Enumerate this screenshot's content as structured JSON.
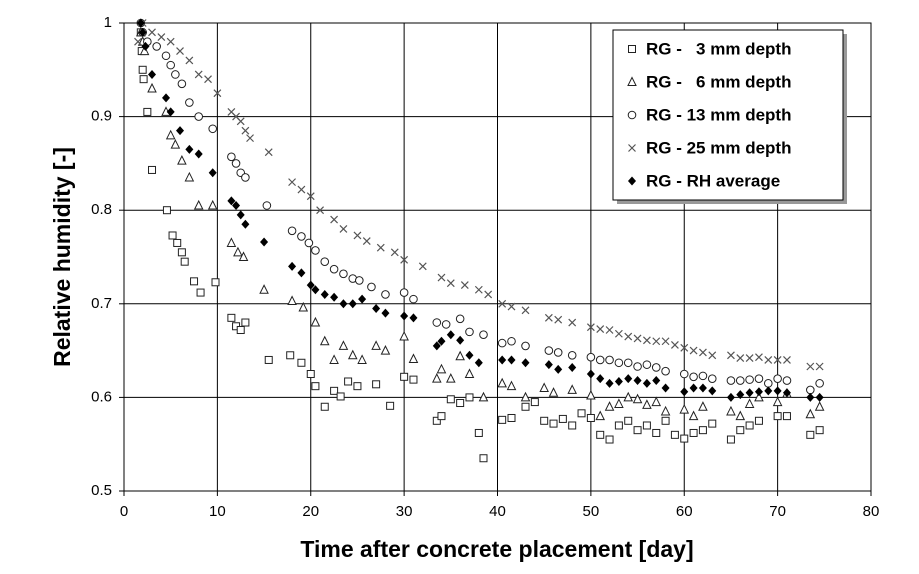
{
  "chart_data": {
    "type": "scatter",
    "x_label": "Time after concrete placement [day]",
    "y_label": "Relative humidity [-]",
    "xlim": [
      0,
      80
    ],
    "xticks": [
      0,
      10,
      20,
      30,
      40,
      50,
      60,
      70,
      80
    ],
    "ylim": [
      0.5,
      1
    ],
    "yticks": [
      0.5,
      0.6,
      0.7,
      0.8,
      0.9,
      1
    ],
    "grid": true,
    "legend": "top-right",
    "series": [
      {
        "name": "RG -   3 mm depth",
        "marker": "square",
        "color": "#222222",
        "x": [
          1.8,
          1.9,
          2,
          2.1,
          2.5,
          3,
          4.6,
          5.2,
          5.7,
          6.2,
          6.5,
          7.5,
          8.2,
          9.8,
          11.5,
          12,
          12.5,
          13,
          15.5,
          17.8,
          19,
          20,
          20.5,
          21.5,
          22.5,
          23.2,
          24,
          25,
          27,
          28.5,
          30,
          31,
          33.5,
          34,
          35,
          36,
          37,
          38,
          38.5,
          40.5,
          41.5,
          43,
          44,
          45,
          46,
          47,
          48,
          49,
          50,
          51,
          52,
          53,
          54,
          55,
          56,
          57,
          58,
          59,
          60,
          61,
          62,
          63,
          65,
          66,
          67,
          68,
          70,
          71,
          73.5,
          74.5
        ],
        "values": [
          0.99,
          0.97,
          0.95,
          0.94,
          0.905,
          0.843,
          0.8,
          0.773,
          0.765,
          0.755,
          0.745,
          0.724,
          0.712,
          0.723,
          0.685,
          0.676,
          0.672,
          0.68,
          0.64,
          0.645,
          0.637,
          0.625,
          0.612,
          0.59,
          0.607,
          0.601,
          0.617,
          0.612,
          0.614,
          0.591,
          0.622,
          0.619,
          0.575,
          0.58,
          0.598,
          0.594,
          0.6,
          0.562,
          0.535,
          0.576,
          0.578,
          0.59,
          0.595,
          0.575,
          0.572,
          0.577,
          0.57,
          0.583,
          0.578,
          0.56,
          0.555,
          0.57,
          0.575,
          0.565,
          0.57,
          0.562,
          0.575,
          0.56,
          0.556,
          0.562,
          0.565,
          0.572,
          0.555,
          0.565,
          0.57,
          0.575,
          0.58,
          0.58,
          0.56,
          0.565
        ]
      },
      {
        "name": "RG -   6 mm depth",
        "marker": "triangle",
        "color": "#222222",
        "x": [
          1.8,
          2,
          2.2,
          3,
          4.5,
          5,
          5.5,
          6.2,
          7,
          8,
          9.5,
          11.5,
          12.2,
          12.8,
          15,
          18,
          19.2,
          20.5,
          21.5,
          22.5,
          23.5,
          24.5,
          25.5,
          27,
          28,
          30,
          31,
          33.5,
          34,
          35,
          36,
          37,
          38.5,
          40.5,
          41.5,
          43,
          45,
          46,
          48,
          50,
          51,
          52,
          53,
          54,
          55,
          56,
          57,
          58,
          60,
          61,
          62,
          65,
          66,
          67,
          68,
          70,
          71,
          73.5,
          74.5
        ],
        "values": [
          0.99,
          0.98,
          0.97,
          0.93,
          0.905,
          0.88,
          0.87,
          0.853,
          0.835,
          0.805,
          0.805,
          0.765,
          0.755,
          0.75,
          0.715,
          0.703,
          0.696,
          0.68,
          0.66,
          0.64,
          0.655,
          0.645,
          0.64,
          0.655,
          0.65,
          0.665,
          0.641,
          0.62,
          0.63,
          0.62,
          0.644,
          0.625,
          0.6,
          0.615,
          0.612,
          0.6,
          0.61,
          0.605,
          0.608,
          0.602,
          0.58,
          0.59,
          0.593,
          0.6,
          0.598,
          0.592,
          0.595,
          0.585,
          0.587,
          0.58,
          0.59,
          0.585,
          0.58,
          0.593,
          0.6,
          0.595,
          0.604,
          0.582,
          0.59
        ]
      },
      {
        "name": "RG - 13 mm depth",
        "marker": "circle",
        "color": "#222222",
        "x": [
          1.8,
          2,
          2.5,
          3.5,
          4.5,
          5,
          5.5,
          6.2,
          7,
          8,
          9.5,
          11.5,
          12,
          12.5,
          13,
          15.3,
          18,
          19,
          19.8,
          20.5,
          21.5,
          22.5,
          23.5,
          24.5,
          25.2,
          26.5,
          28,
          30,
          31,
          33.5,
          34.5,
          36,
          37,
          38.5,
          40.5,
          41.5,
          43,
          45.5,
          46.5,
          48,
          50,
          51,
          52,
          53,
          54,
          55,
          56,
          57,
          58,
          60,
          61,
          62,
          63,
          65,
          66,
          67,
          68,
          69,
          70,
          71,
          73.5,
          74.5
        ],
        "values": [
          1.0,
          0.99,
          0.98,
          0.975,
          0.965,
          0.955,
          0.945,
          0.935,
          0.915,
          0.9,
          0.887,
          0.857,
          0.85,
          0.84,
          0.835,
          0.805,
          0.778,
          0.772,
          0.765,
          0.757,
          0.745,
          0.737,
          0.732,
          0.727,
          0.725,
          0.718,
          0.71,
          0.712,
          0.705,
          0.68,
          0.678,
          0.684,
          0.67,
          0.667,
          0.658,
          0.66,
          0.655,
          0.65,
          0.648,
          0.645,
          0.643,
          0.64,
          0.64,
          0.637,
          0.637,
          0.633,
          0.635,
          0.632,
          0.628,
          0.625,
          0.622,
          0.623,
          0.62,
          0.618,
          0.618,
          0.619,
          0.62,
          0.615,
          0.62,
          0.618,
          0.608,
          0.615
        ]
      },
      {
        "name": "RG - 25 mm depth",
        "marker": "cross",
        "color": "#555555",
        "x": [
          1.5,
          2,
          3,
          4,
          5,
          6,
          7,
          8,
          9,
          10,
          11.5,
          12,
          12.5,
          13,
          13.5,
          15.5,
          18,
          19,
          20,
          21,
          22.5,
          23.5,
          25,
          26,
          27.5,
          29,
          30,
          32,
          34,
          35,
          36.5,
          38,
          39,
          40.5,
          41.5,
          43,
          45.5,
          46.5,
          48,
          50,
          51,
          52,
          53,
          54,
          55,
          56,
          57,
          58,
          59,
          60,
          61,
          62,
          63,
          65,
          66,
          67,
          68,
          69,
          70,
          71,
          73.5,
          74.5
        ],
        "values": [
          0.98,
          1.0,
          0.99,
          0.985,
          0.98,
          0.97,
          0.96,
          0.945,
          0.94,
          0.925,
          0.905,
          0.9,
          0.895,
          0.885,
          0.877,
          0.862,
          0.83,
          0.822,
          0.815,
          0.8,
          0.79,
          0.78,
          0.773,
          0.767,
          0.76,
          0.755,
          0.747,
          0.74,
          0.728,
          0.722,
          0.72,
          0.715,
          0.71,
          0.7,
          0.697,
          0.693,
          0.685,
          0.683,
          0.68,
          0.675,
          0.673,
          0.672,
          0.668,
          0.665,
          0.663,
          0.661,
          0.66,
          0.66,
          0.656,
          0.653,
          0.65,
          0.648,
          0.645,
          0.645,
          0.642,
          0.642,
          0.643,
          0.64,
          0.64,
          0.64,
          0.633,
          0.633
        ]
      },
      {
        "name": "RG - RH average",
        "marker": "diamond",
        "color": "#000000",
        "x": [
          1.8,
          2,
          2.3,
          3,
          4.5,
          5,
          6,
          7,
          8,
          9.5,
          11.5,
          12,
          12.5,
          13,
          15,
          18,
          19,
          20,
          20.5,
          21.5,
          22.5,
          23.5,
          24.5,
          25.5,
          27,
          28,
          30,
          31,
          33.5,
          34,
          35,
          36,
          37,
          38,
          40.5,
          41.5,
          43,
          45.5,
          46.5,
          48,
          50,
          51,
          52,
          53,
          54,
          55,
          56,
          57,
          58,
          60,
          61,
          62,
          63,
          65,
          66,
          67,
          68,
          69,
          70,
          71,
          73.5,
          74.5
        ],
        "values": [
          1.0,
          0.99,
          0.975,
          0.945,
          0.92,
          0.905,
          0.885,
          0.865,
          0.86,
          0.84,
          0.81,
          0.805,
          0.795,
          0.785,
          0.766,
          0.74,
          0.733,
          0.72,
          0.715,
          0.71,
          0.707,
          0.7,
          0.7,
          0.705,
          0.695,
          0.69,
          0.687,
          0.685,
          0.655,
          0.66,
          0.667,
          0.661,
          0.645,
          0.637,
          0.64,
          0.64,
          0.637,
          0.635,
          0.63,
          0.632,
          0.625,
          0.62,
          0.615,
          0.617,
          0.62,
          0.618,
          0.615,
          0.618,
          0.61,
          0.606,
          0.61,
          0.61,
          0.607,
          0.6,
          0.603,
          0.605,
          0.606,
          0.607,
          0.607,
          0.605,
          0.6,
          0.6
        ]
      }
    ]
  }
}
